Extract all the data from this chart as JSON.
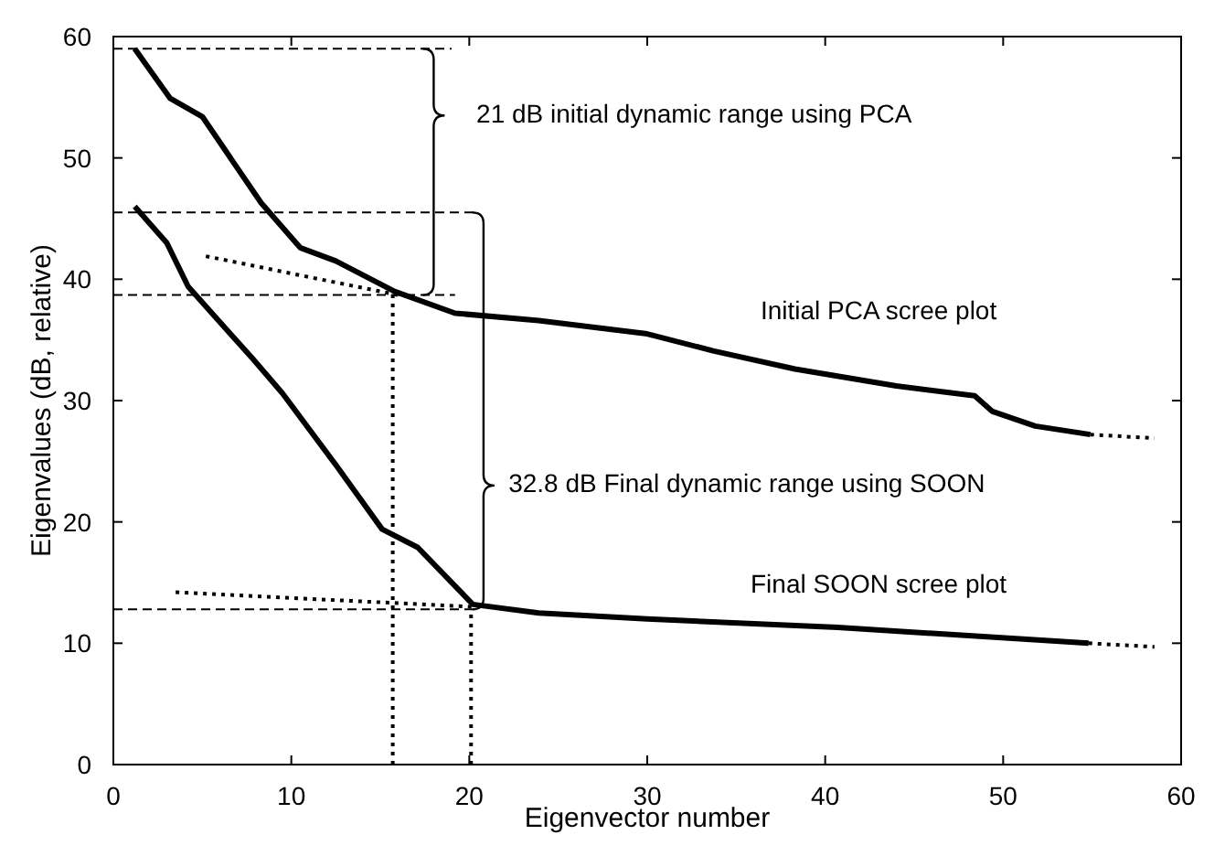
{
  "chart_data": {
    "type": "line",
    "xlabel": "Eigenvector number",
    "ylabel": "Eigenvalues (dB, relative)",
    "xlim": [
      0,
      60
    ],
    "ylim": [
      0,
      60
    ],
    "xticks": [
      0,
      10,
      20,
      30,
      40,
      50,
      60
    ],
    "yticks": [
      0,
      10,
      20,
      30,
      40,
      50,
      60
    ],
    "series": [
      {
        "color": "#000000",
        "line_style": "solid",
        "x": [
          1.2,
          3.2,
          5,
          8.3,
          10.5,
          12.5,
          15.8,
          19.2,
          23.9,
          30,
          33.7,
          38.3,
          44,
          48.4,
          49.4,
          51.8,
          54.9
        ],
        "values": [
          59,
          54.9,
          53.4,
          46.3,
          42.6,
          41.5,
          39,
          37.2,
          36.6,
          35.5,
          34.1,
          32.6,
          31.2,
          30.4,
          29.1,
          27.9,
          27.2
        ]
      },
      {
        "color": "#000000",
        "line_style": "solid",
        "x": [
          1.2,
          3,
          4.2,
          7.8,
          9.5,
          12.5,
          15.1,
          17.1,
          20.2,
          23.9,
          30,
          40.7,
          54.8
        ],
        "values": [
          46,
          43,
          39.4,
          33.5,
          30.6,
          24.7,
          19.4,
          17.9,
          13.2,
          12.5,
          12,
          11.3,
          10
        ]
      },
      {
        "color": "#000000",
        "line_style": "dotted",
        "x": [
          5.2,
          16
        ],
        "values": [
          41.9,
          38.7
        ]
      },
      {
        "color": "#000000",
        "line_style": "dotted",
        "x": [
          54.9,
          58.5
        ],
        "values": [
          27.2,
          26.9
        ]
      },
      {
        "color": "#000000",
        "line_style": "dotted",
        "x": [
          3.5,
          20.2
        ],
        "values": [
          14.2,
          13
        ]
      },
      {
        "color": "#000000",
        "line_style": "dotted",
        "x": [
          54.8,
          58.5
        ],
        "values": [
          10,
          9.7
        ]
      },
      {
        "color": "#000000",
        "line_style": "dashed",
        "x": [
          0,
          19
        ],
        "values": [
          59,
          59
        ]
      },
      {
        "color": "#000000",
        "line_style": "dashed",
        "x": [
          0,
          20.5
        ],
        "values": [
          45.5,
          45.5
        ]
      },
      {
        "color": "#000000",
        "line_style": "dashed",
        "x": [
          0,
          19.2
        ],
        "values": [
          38.7,
          38.7
        ]
      },
      {
        "color": "#000000",
        "line_style": "dashed",
        "x": [
          0,
          20.3
        ],
        "values": [
          12.8,
          12.8
        ]
      },
      {
        "color": "#000000",
        "line_style": "dotted",
        "x": [
          15.7,
          15.7
        ],
        "values": [
          0,
          38.7
        ]
      },
      {
        "color": "#000000",
        "line_style": "dotted",
        "x": [
          20.1,
          20.1
        ],
        "values": [
          0,
          12.8
        ]
      }
    ],
    "annotations": [
      "21 dB initial dynamic range using PCA",
      "32.8 dB Final dynamic range using SOON",
      "Initial PCA scree plot",
      "Final SOON scree plot"
    ]
  }
}
